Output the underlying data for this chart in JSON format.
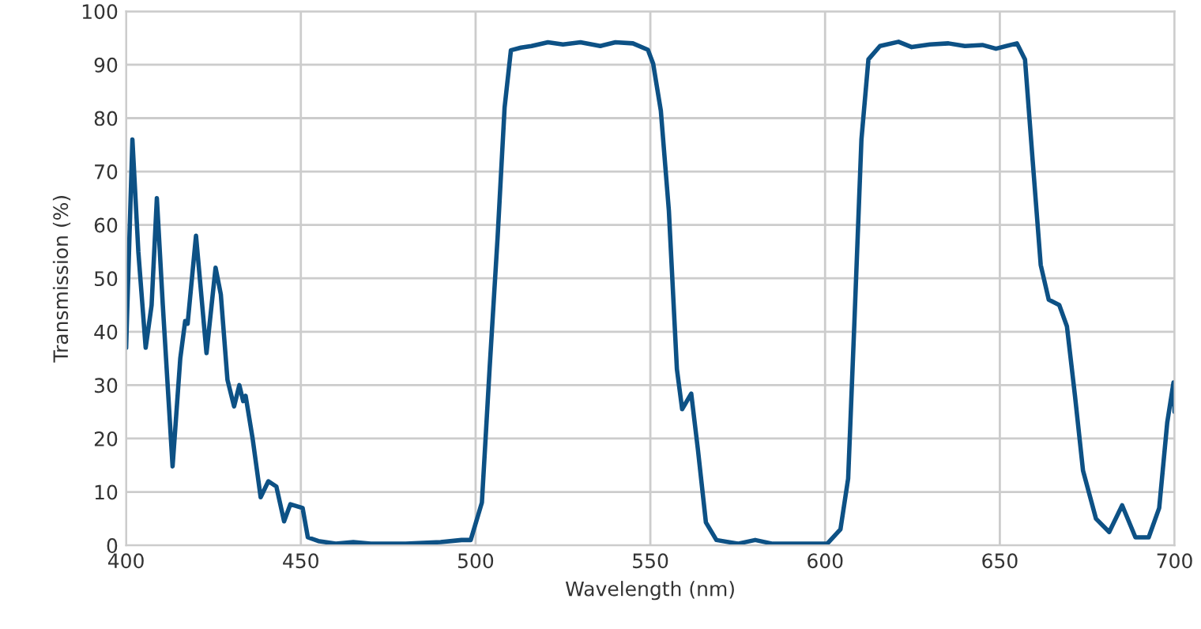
{
  "chart_data": {
    "type": "line",
    "xlabel": "Wavelength (nm)",
    "ylabel": "Transmission (%)",
    "xlim": [
      400,
      700
    ],
    "ylim": [
      0,
      100
    ],
    "xticks": [
      400,
      450,
      500,
      550,
      600,
      650,
      700
    ],
    "yticks": [
      0,
      10,
      20,
      30,
      40,
      50,
      60,
      70,
      80,
      90,
      100
    ],
    "grid": true,
    "marker": "none",
    "line_style": "solid",
    "series": [
      {
        "color": "#0d5185",
        "x": [
          400,
          401.8,
          403.5,
          405.6,
          407.3,
          408.8,
          410.5,
          413.3,
          415.5,
          416.9,
          417.6,
          420,
          423,
          425.6,
          427.1,
          429,
          430.9,
          432.4,
          433.5,
          434.2,
          436.2,
          438.5,
          440.7,
          443,
          445.2,
          447,
          450.5,
          452,
          455,
          460,
          465,
          470,
          480,
          490,
          496,
          498.6,
          501.8,
          504,
          506.3,
          508.3,
          510.1,
          513,
          516,
          520.7,
          525,
          530,
          535.7,
          540,
          545,
          549.3,
          550.8,
          553,
          555.3,
          557.6,
          559.1,
          561.7,
          563.6,
          565.9,
          568.9,
          575,
          580,
          585,
          597,
          600.6,
          604.4,
          606.6,
          608.4,
          610.4,
          612.4,
          615.7,
          621,
          624.8,
          630,
          635.3,
          640,
          645,
          648.9,
          654.9,
          657.2,
          659.4,
          661.7,
          664,
          667,
          669.2,
          671.5,
          673.8,
          677.5,
          681.3,
          685,
          688.8,
          692.6,
          695.6,
          697.9,
          699.7,
          700
        ],
        "values": [
          37,
          76,
          55,
          37,
          45,
          65,
          45,
          14.8,
          35,
          42,
          41.5,
          58,
          36,
          52,
          47,
          31,
          26,
          30,
          27,
          28,
          20,
          9,
          12,
          11,
          4.5,
          7.7,
          7,
          1.5,
          0.8,
          0.3,
          0.6,
          0.3,
          0.3,
          0.6,
          1,
          1,
          8,
          33,
          57.7,
          82,
          92.7,
          93.2,
          93.5,
          94.2,
          93.8,
          94.2,
          93.5,
          94.2,
          94,
          92.8,
          90.2,
          81.4,
          62.7,
          33,
          25.5,
          28.4,
          18,
          4.3,
          1,
          0.3,
          1,
          0.3,
          0.3,
          0.3,
          3,
          12.5,
          42,
          76,
          91,
          93.5,
          94.3,
          93.3,
          93.8,
          94,
          93.5,
          93.7,
          93,
          94,
          91,
          72,
          52.5,
          46,
          45,
          41,
          28,
          14,
          5,
          2.5,
          7.5,
          1.5,
          1.5,
          7,
          23,
          30.5,
          25
        ]
      }
    ]
  }
}
